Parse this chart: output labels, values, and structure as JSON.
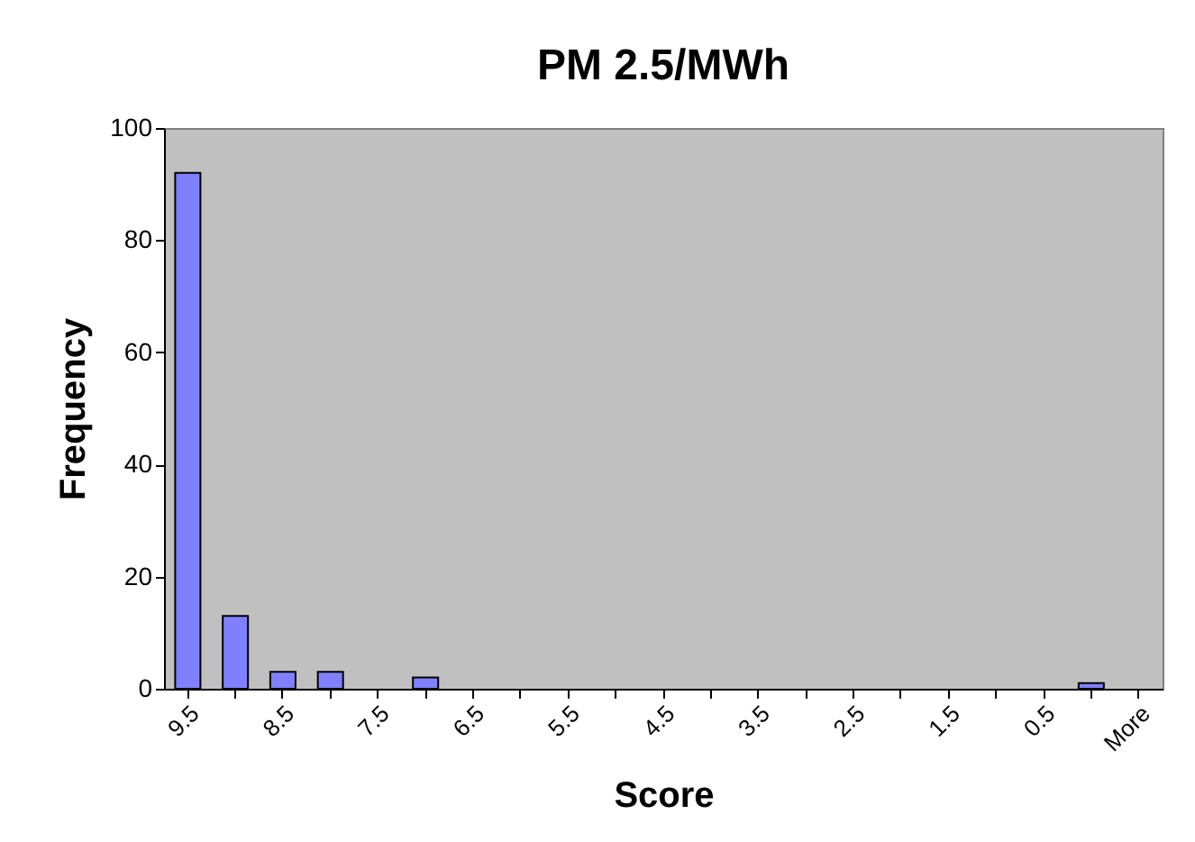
{
  "chart_data": {
    "type": "bar",
    "title": "PM 2.5/MWh",
    "xlabel": "Score",
    "ylabel": "Frequency",
    "categories": [
      "9.5",
      null,
      "8.5",
      null,
      "7.5",
      null,
      "6.5",
      null,
      "5.5",
      null,
      "4.5",
      null,
      "3.5",
      null,
      "2.5",
      null,
      "1.5",
      null,
      "0.5",
      null,
      "More"
    ],
    "values": [
      92,
      13,
      3,
      3,
      0,
      2,
      0,
      0,
      0,
      0,
      0,
      0,
      0,
      0,
      0,
      0,
      0,
      0,
      0,
      1,
      0
    ],
    "color": "#8080ff",
    "ylim": [
      0,
      100
    ],
    "yticks": [
      0,
      20,
      40,
      60,
      80,
      100
    ],
    "grid": false
  }
}
